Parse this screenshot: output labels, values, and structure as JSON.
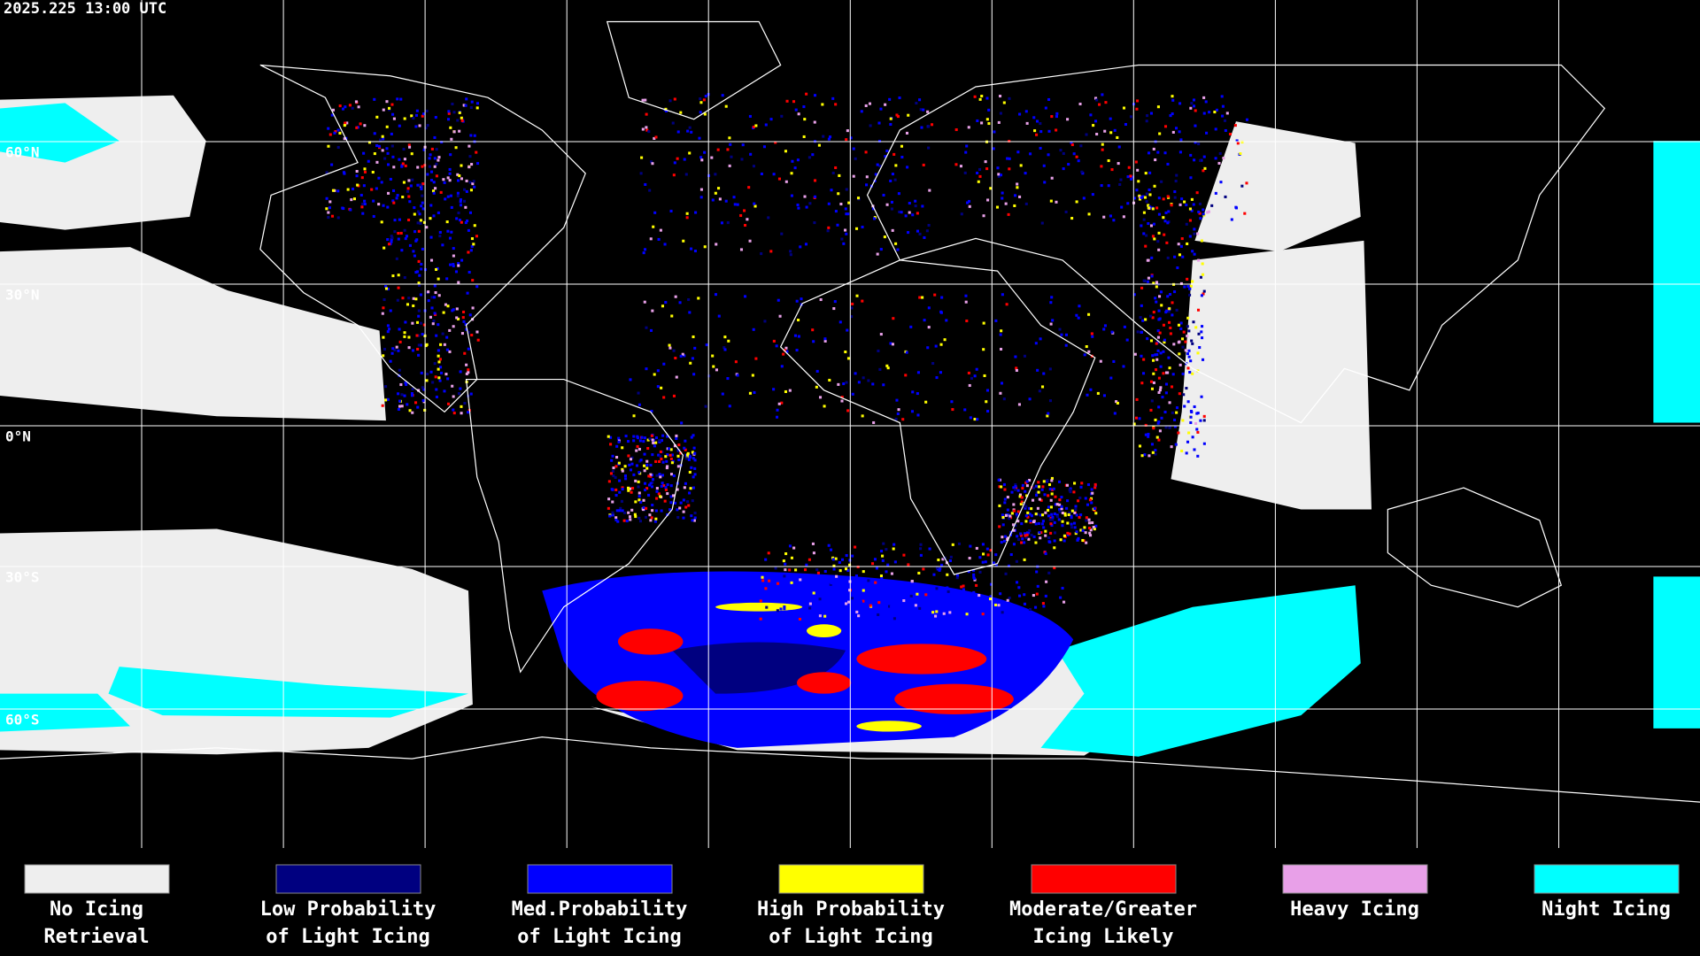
{
  "header": {
    "timestamp": "2025.225 13:00 UTC"
  },
  "map": {
    "lat_labels": [
      "60°N",
      "30°N",
      "0°N",
      "30°S",
      "60°S"
    ]
  },
  "legend": [
    {
      "lines": [
        "No Icing",
        "Retrieval"
      ],
      "color": "#eeeeee"
    },
    {
      "lines": [
        "Low Probability",
        "of Light Icing"
      ],
      "color": "#000080"
    },
    {
      "lines": [
        "Med.Probability",
        "of Light Icing"
      ],
      "color": "#0000ff"
    },
    {
      "lines": [
        "High Probability",
        "of Light Icing"
      ],
      "color": "#ffff00"
    },
    {
      "lines": [
        "Moderate/Greater",
        "Icing Likely"
      ],
      "color": "#ff0000"
    },
    {
      "lines": [
        "Heavy Icing"
      ],
      "color": "#e8a0e8"
    },
    {
      "lines": [
        "Night Icing"
      ],
      "color": "#00ffff"
    }
  ]
}
